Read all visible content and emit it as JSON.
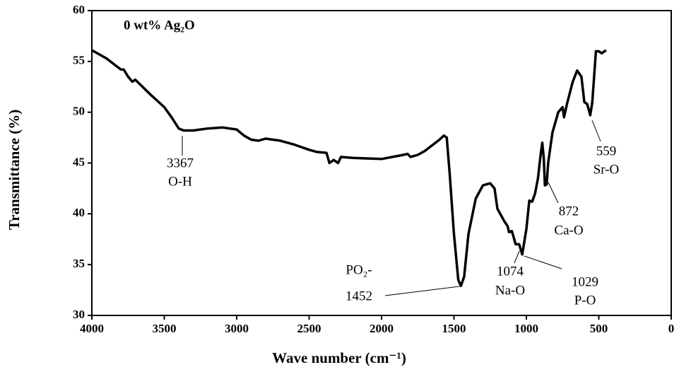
{
  "chart_data": {
    "type": "line",
    "title": "0 wt% Ag₂O",
    "x_label": "Wave number (cm⁻¹)",
    "y_label": "Transmittance (%)",
    "xlim": [
      4000,
      0
    ],
    "ylim": [
      30,
      60
    ],
    "xticks": [
      4000,
      3500,
      3000,
      2500,
      2000,
      1500,
      1000,
      500,
      0
    ],
    "yticks": [
      30,
      35,
      40,
      45,
      50,
      55,
      60
    ],
    "x": [
      4000,
      3900,
      3800,
      3780,
      3750,
      3720,
      3700,
      3650,
      3600,
      3500,
      3450,
      3400,
      3367,
      3300,
      3200,
      3100,
      3000,
      2950,
      2900,
      2850,
      2800,
      2700,
      2600,
      2500,
      2450,
      2380,
      2360,
      2330,
      2300,
      2280,
      2200,
      2000,
      1850,
      1820,
      1800,
      1750,
      1700,
      1600,
      1570,
      1550,
      1530,
      1500,
      1470,
      1452,
      1430,
      1400,
      1350,
      1300,
      1250,
      1220,
      1200,
      1150,
      1130,
      1120,
      1100,
      1074,
      1050,
      1029,
      1000,
      980,
      960,
      940,
      920,
      900,
      890,
      880,
      872,
      860,
      850,
      820,
      780,
      750,
      740,
      720,
      680,
      650,
      620,
      600,
      580,
      559,
      545,
      520,
      500,
      480,
      450
    ],
    "series": [
      {
        "name": "0 wt% Ag₂O",
        "color": "#000000",
        "values": [
          56.1,
          55.3,
          54.2,
          54.2,
          53.5,
          53.0,
          53.2,
          52.5,
          51.8,
          50.5,
          49.5,
          48.4,
          48.2,
          48.2,
          48.4,
          48.5,
          48.3,
          47.7,
          47.3,
          47.2,
          47.4,
          47.2,
          46.8,
          46.3,
          46.1,
          46.0,
          45.0,
          45.3,
          45.0,
          45.6,
          45.5,
          45.4,
          45.8,
          45.9,
          45.6,
          45.8,
          46.2,
          47.3,
          47.7,
          47.5,
          44,
          38,
          33.5,
          32.9,
          33.8,
          38,
          41.5,
          42.8,
          43.0,
          42.5,
          40.5,
          39.2,
          38.8,
          38.2,
          38.3,
          37.0,
          37.0,
          36.0,
          38.5,
          41.3,
          41.2,
          42.0,
          43.5,
          46.0,
          47.0,
          45.5,
          42.8,
          42.9,
          45.0,
          48.0,
          50.0,
          50.5,
          49.5,
          50.8,
          53.0,
          54.1,
          53.5,
          51.0,
          50.8,
          49.7,
          51.0,
          56.0,
          56.0,
          55.8,
          56.1
        ]
      }
    ],
    "annotations": [
      [
        "3367",
        "O-H"
      ],
      [
        "PO₂-",
        "1452"
      ],
      [
        "1074",
        "Na-O"
      ],
      [
        "1029",
        "P-O"
      ],
      [
        "872",
        "Ca-O"
      ],
      [
        "559",
        "Sr-O"
      ]
    ]
  }
}
